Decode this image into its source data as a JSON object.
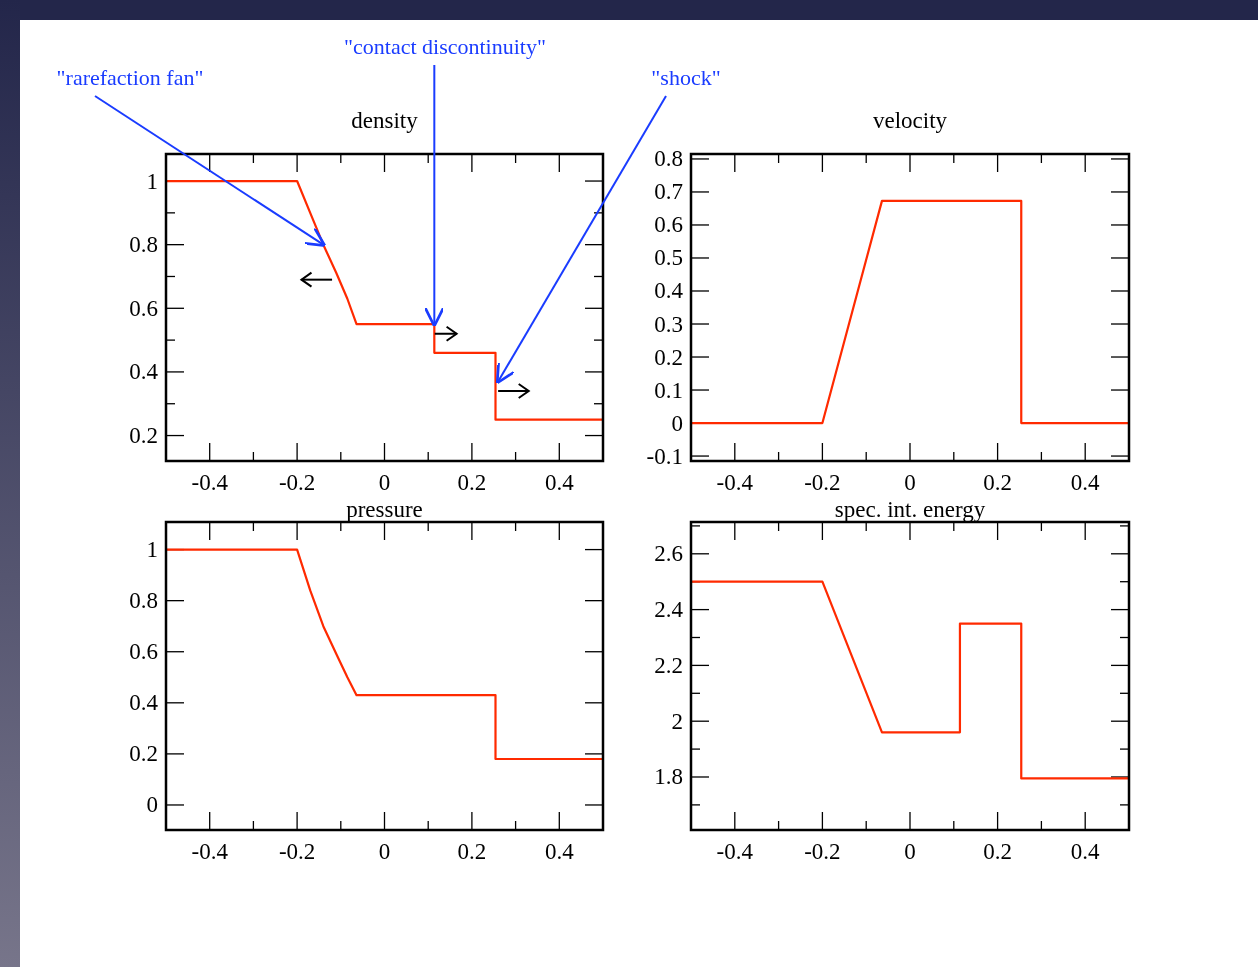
{
  "chart_data": [
    {
      "type": "line",
      "title": "density",
      "x": [
        -0.5,
        -0.2,
        -0.17,
        -0.14,
        -0.11,
        -0.085,
        -0.064,
        0.114,
        0.114,
        0.254,
        0.254,
        0.5
      ],
      "series": [
        {
          "color": "#ff2a00",
          "values": [
            1,
            1,
            0.9,
            0.8,
            0.71,
            0.63,
            0.55,
            0.55,
            0.46,
            0.46,
            0.25,
            0.25
          ]
        }
      ],
      "xlim": [
        -0.5,
        0.5
      ],
      "xticks": [
        -0.4,
        -0.2,
        0,
        0.2,
        0.4,
        {
          "value": -0.3,
          "label": null
        },
        {
          "value": -0.1,
          "label": null
        },
        {
          "value": 0.1,
          "label": null
        },
        {
          "value": 0.3,
          "label": null
        }
      ],
      "ylim": [
        0.12,
        1.085
      ],
      "yticks": [
        0.2,
        0.4,
        0.6,
        0.8,
        1,
        {
          "value": 0.3,
          "label": null
        },
        {
          "value": 0.5,
          "label": null
        },
        {
          "value": 0.7,
          "label": null
        },
        {
          "value": 0.9,
          "label": null
        }
      ],
      "annotations": [
        {
          "text": "\"rarefaction fan\"",
          "x": -0.14,
          "y": 0.8
        },
        {
          "text": "\"contact discontinuity\"",
          "x": 0.114,
          "y": 0.55
        },
        {
          "text": "\"shock\"",
          "x": 0.26,
          "y": 0.37
        }
      ]
    },
    {
      "type": "line",
      "title": "velocity",
      "x": [
        -0.5,
        -0.2,
        -0.064,
        0.254,
        0.254,
        0.5
      ],
      "series": [
        {
          "color": "#ff2a00",
          "values": [
            0,
            0,
            0.673,
            0.673,
            0,
            0
          ]
        }
      ],
      "xlim": [
        -0.5,
        0.5
      ],
      "xticks": [
        -0.4,
        -0.2,
        0,
        0.2,
        0.4,
        {
          "value": -0.3,
          "label": null
        },
        {
          "value": -0.1,
          "label": null
        },
        {
          "value": 0.1,
          "label": null
        },
        {
          "value": 0.3,
          "label": null
        }
      ],
      "ylim": [
        -0.115,
        0.815
      ],
      "yticks": [
        -0.1,
        0,
        0.1,
        0.2,
        0.3,
        0.4,
        0.5,
        0.6,
        0.7,
        0.8
      ]
    },
    {
      "type": "line",
      "title": "pressure",
      "x": [
        -0.5,
        -0.2,
        -0.17,
        -0.14,
        -0.11,
        -0.085,
        -0.064,
        0.254,
        0.254,
        0.5
      ],
      "series": [
        {
          "color": "#ff2a00",
          "values": [
            1,
            1,
            0.84,
            0.7,
            0.59,
            0.5,
            0.43,
            0.43,
            0.18,
            0.18
          ]
        }
      ],
      "xlim": [
        -0.5,
        0.5
      ],
      "xticks": [
        -0.4,
        -0.2,
        0,
        0.2,
        0.4,
        {
          "value": -0.3,
          "label": null
        },
        {
          "value": -0.1,
          "label": null
        },
        {
          "value": 0.1,
          "label": null
        },
        {
          "value": 0.3,
          "label": null
        }
      ],
      "ylim": [
        -0.098,
        1.108
      ],
      "yticks": [
        0,
        0.2,
        0.4,
        0.6,
        0.8,
        1
      ]
    },
    {
      "type": "line",
      "title": "spec. int. energy",
      "x": [
        -0.5,
        -0.2,
        -0.064,
        0.114,
        0.114,
        0.254,
        0.254,
        0.5
      ],
      "series": [
        {
          "color": "#ff2a00",
          "values": [
            2.5,
            2.5,
            1.96,
            1.96,
            2.35,
            2.35,
            1.795,
            1.795
          ]
        }
      ],
      "xlim": [
        -0.5,
        0.5
      ],
      "xticks": [
        -0.4,
        -0.2,
        0,
        0.2,
        0.4,
        {
          "value": -0.3,
          "label": null
        },
        {
          "value": -0.1,
          "label": null
        },
        {
          "value": 0.1,
          "label": null
        },
        {
          "value": 0.3,
          "label": null
        }
      ],
      "ylim": [
        1.61,
        2.714
      ],
      "yticks": [
        1.8,
        2,
        2.2,
        2.4,
        2.6,
        {
          "value": 1.7,
          "label": null
        },
        {
          "value": 1.9,
          "label": null
        },
        {
          "value": 2.1,
          "label": null
        },
        {
          "value": 2.3,
          "label": null
        },
        {
          "value": 2.5,
          "label": null
        },
        {
          "value": 2.7,
          "label": null
        }
      ]
    }
  ]
}
